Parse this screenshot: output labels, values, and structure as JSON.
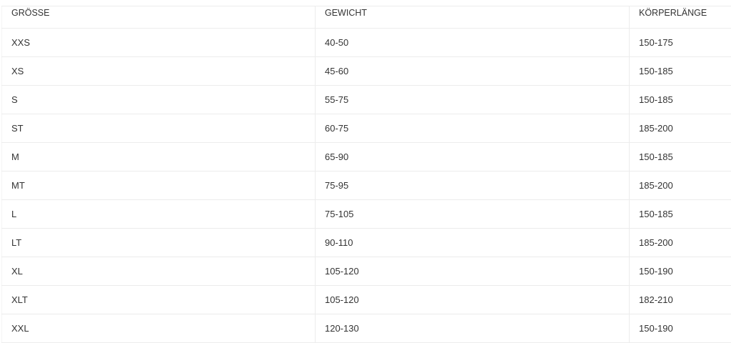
{
  "table": {
    "headers": [
      "GRÖSSE",
      "GEWICHT",
      "KÖRPERLÄNGE"
    ],
    "rows": [
      [
        "XXS",
        "40-50",
        "150-175"
      ],
      [
        "XS",
        "45-60",
        "150-185"
      ],
      [
        "S",
        "55-75",
        "150-185"
      ],
      [
        "ST",
        "60-75",
        "185-200"
      ],
      [
        "M",
        "65-90",
        "150-185"
      ],
      [
        "MT",
        "75-95",
        "185-200"
      ],
      [
        "L",
        "75-105",
        "150-185"
      ],
      [
        "LT",
        "90-110",
        "185-200"
      ],
      [
        "XL",
        "105-120",
        "150-190"
      ],
      [
        "XLT",
        "105-120",
        "182-210"
      ],
      [
        "XXL",
        "120-130",
        "150-190"
      ]
    ]
  }
}
